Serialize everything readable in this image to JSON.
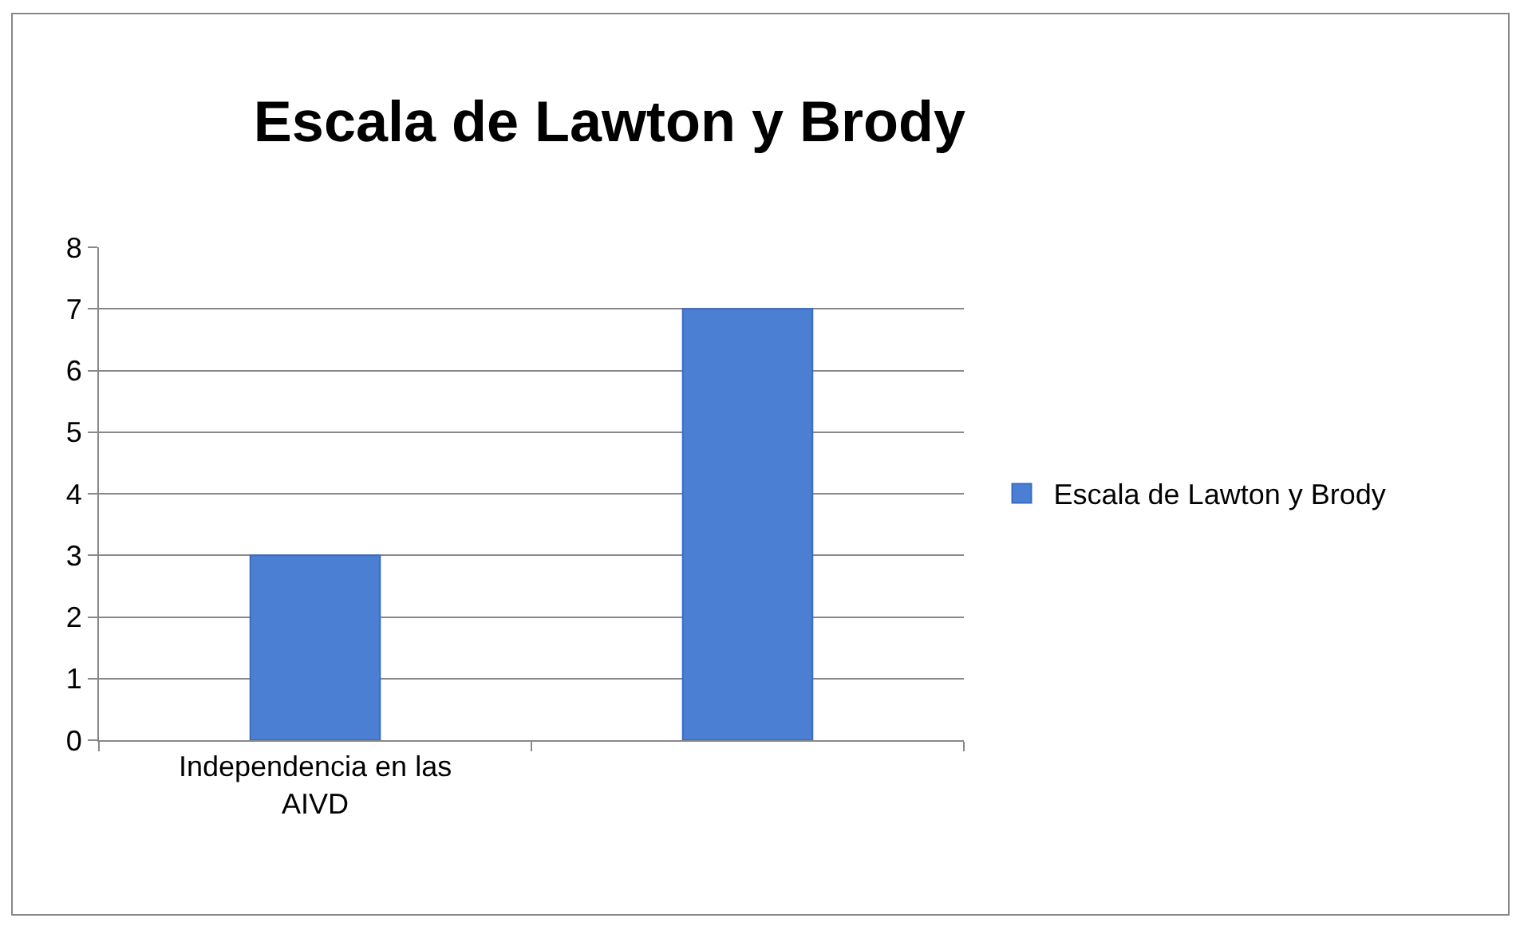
{
  "chart_data": {
    "type": "bar",
    "title": "Escala de Lawton y Brody",
    "categories": [
      "Independencia en las AIVD",
      null
    ],
    "series": [
      {
        "name": "Escala de Lawton y Brody",
        "color": "#4a7fd4",
        "values": [
          3,
          7
        ]
      }
    ],
    "ylim": [
      0,
      8
    ],
    "yticks": [
      0,
      1,
      2,
      3,
      4,
      5,
      6,
      7,
      8
    ],
    "grid": "y",
    "legend": "right"
  }
}
